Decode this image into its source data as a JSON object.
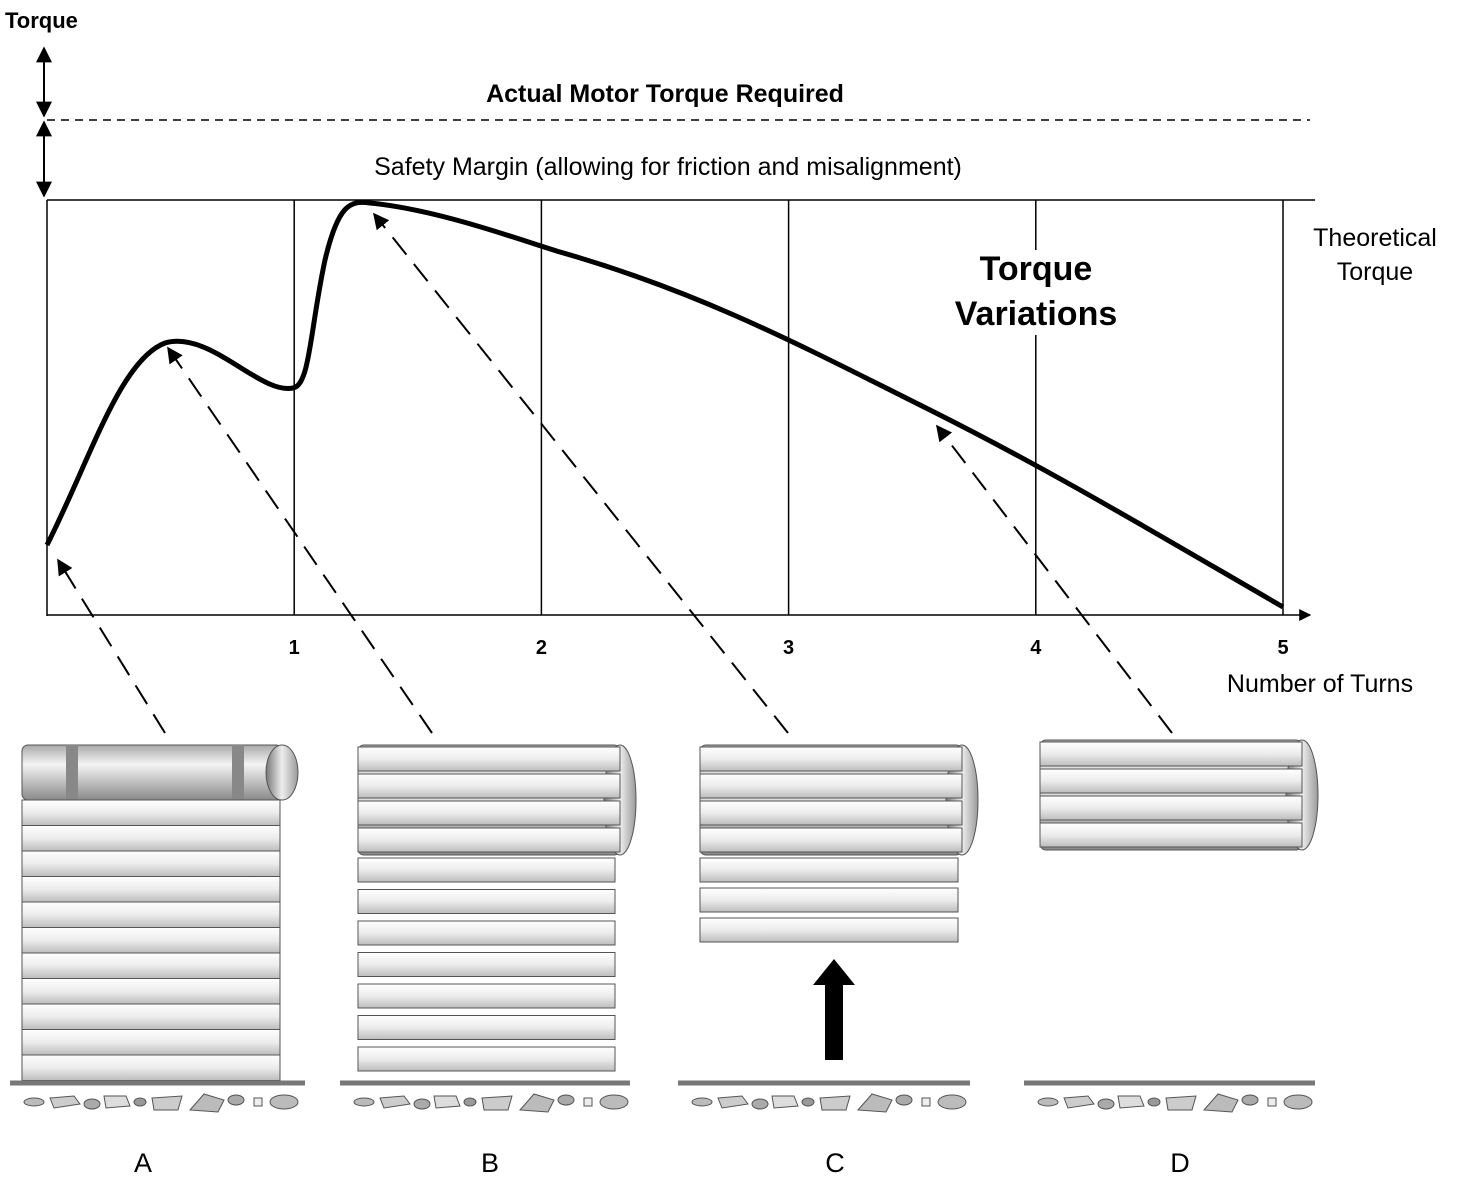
{
  "header": {
    "y_label": "Torque",
    "title": "Actual Motor Torque Required",
    "margin_note": "Safety Margin (allowing for friction and misalignment)"
  },
  "theoretical": [
    "Theoretical",
    "Torque"
  ],
  "curve_label": [
    "Torque",
    "Variations"
  ],
  "x_axis": {
    "label": "Number of Turns",
    "ticks": [
      1,
      2,
      3,
      4,
      5
    ]
  },
  "stages": [
    "A",
    "B",
    "C",
    "D"
  ]
}
